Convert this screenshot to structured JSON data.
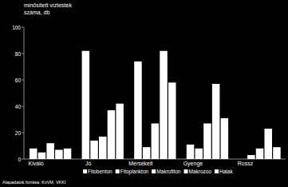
{
  "chart_data": {
    "type": "bar",
    "y_label_lines": [
      "minősített víztestek",
      "száma, db"
    ],
    "source": "Alapadatok forrása: KvVM, VKKI",
    "categories": [
      "Kiváló",
      "Jó",
      "Mérsékelt",
      "Gyenge",
      "Rossz"
    ],
    "series": [
      {
        "name": "Fitobenton",
        "color": "#ffffff",
        "values": [
          8,
          82,
          74,
          11,
          0
        ]
      },
      {
        "name": "Fitoplankton",
        "color": "#ffffff",
        "values": [
          5,
          14,
          9,
          8,
          3
        ]
      },
      {
        "name": "Makrofiton",
        "color": "#ffffff",
        "values": [
          12,
          17,
          27,
          27,
          8
        ]
      },
      {
        "name": "Makrozoo",
        "color": "#ffffff",
        "values": [
          7,
          37,
          82,
          57,
          23
        ]
      },
      {
        "name": "Halak",
        "color": "#ffffff",
        "values": [
          8,
          42,
          58,
          31,
          9
        ]
      }
    ],
    "ylim": [
      0,
      100
    ],
    "yticks": [
      0,
      20,
      40,
      60,
      80,
      100
    ],
    "grid": false,
    "legend": "bottom"
  }
}
